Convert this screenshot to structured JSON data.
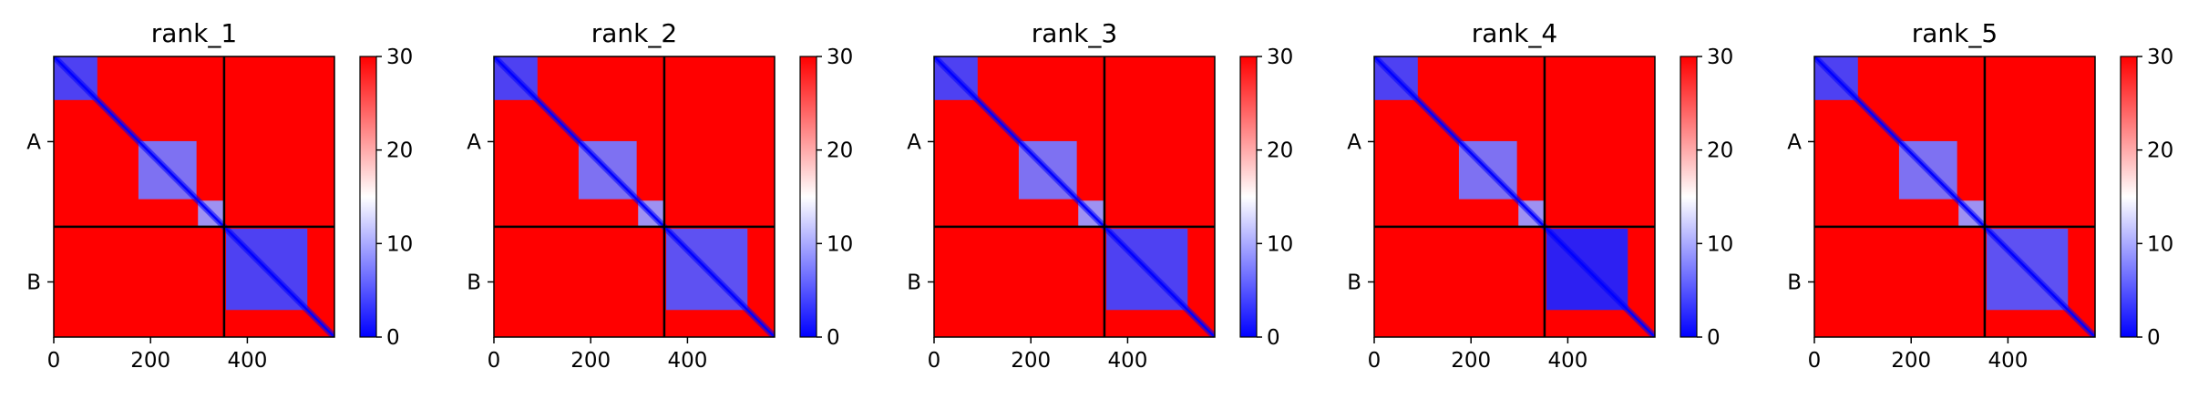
{
  "colors": {
    "low": "#0000ff",
    "mid": "#ffffff",
    "high": "#ff0000",
    "frame": "#000000"
  },
  "chart_data": [
    {
      "type": "heatmap",
      "title": "rank_1",
      "x_ticks": [
        0,
        200,
        400
      ],
      "x_range": [
        0,
        580
      ],
      "chain_boundary": 352,
      "chain_labels": [
        "A",
        "B"
      ],
      "chain_label_positions": [
        176,
        466
      ],
      "colorbar": {
        "range": [
          0,
          30
        ],
        "ticks": [
          0,
          10,
          20,
          30
        ],
        "colormap": "bwr"
      },
      "blocks": [
        {
          "from": 0,
          "to": 90,
          "value": 4
        },
        {
          "from": 175,
          "to": 295,
          "value": 7
        },
        {
          "from": 298,
          "to": 352,
          "value": 9
        },
        {
          "from": 356,
          "to": 524,
          "value": 4
        }
      ]
    },
    {
      "type": "heatmap",
      "title": "rank_2",
      "x_ticks": [
        0,
        200,
        400
      ],
      "x_range": [
        0,
        580
      ],
      "chain_boundary": 352,
      "chain_labels": [
        "A",
        "B"
      ],
      "chain_label_positions": [
        176,
        466
      ],
      "colorbar": {
        "range": [
          0,
          30
        ],
        "ticks": [
          0,
          10,
          20,
          30
        ],
        "colormap": "bwr"
      },
      "blocks": [
        {
          "from": 0,
          "to": 90,
          "value": 4
        },
        {
          "from": 175,
          "to": 295,
          "value": 7
        },
        {
          "from": 298,
          "to": 352,
          "value": 9
        },
        {
          "from": 356,
          "to": 524,
          "value": 5
        }
      ]
    },
    {
      "type": "heatmap",
      "title": "rank_3",
      "x_ticks": [
        0,
        200,
        400
      ],
      "x_range": [
        0,
        580
      ],
      "chain_boundary": 352,
      "chain_labels": [
        "A",
        "B"
      ],
      "chain_label_positions": [
        176,
        466
      ],
      "colorbar": {
        "range": [
          0,
          30
        ],
        "ticks": [
          0,
          10,
          20,
          30
        ],
        "colormap": "bwr"
      },
      "blocks": [
        {
          "from": 0,
          "to": 90,
          "value": 4
        },
        {
          "from": 175,
          "to": 295,
          "value": 7
        },
        {
          "from": 298,
          "to": 352,
          "value": 9
        },
        {
          "from": 356,
          "to": 524,
          "value": 4
        }
      ]
    },
    {
      "type": "heatmap",
      "title": "rank_4",
      "x_ticks": [
        0,
        200,
        400
      ],
      "x_range": [
        0,
        580
      ],
      "chain_boundary": 352,
      "chain_labels": [
        "A",
        "B"
      ],
      "chain_label_positions": [
        176,
        466
      ],
      "colorbar": {
        "range": [
          0,
          30
        ],
        "ticks": [
          0,
          10,
          20,
          30
        ],
        "colormap": "bwr"
      },
      "blocks": [
        {
          "from": 0,
          "to": 90,
          "value": 4
        },
        {
          "from": 175,
          "to": 295,
          "value": 7
        },
        {
          "from": 298,
          "to": 352,
          "value": 9
        },
        {
          "from": 356,
          "to": 524,
          "value": 2
        }
      ]
    },
    {
      "type": "heatmap",
      "title": "rank_5",
      "x_ticks": [
        0,
        200,
        400
      ],
      "x_range": [
        0,
        580
      ],
      "chain_boundary": 352,
      "chain_labels": [
        "A",
        "B"
      ],
      "chain_label_positions": [
        176,
        466
      ],
      "colorbar": {
        "range": [
          0,
          30
        ],
        "ticks": [
          0,
          10,
          20,
          30
        ],
        "colormap": "bwr"
      },
      "blocks": [
        {
          "from": 0,
          "to": 90,
          "value": 4
        },
        {
          "from": 175,
          "to": 295,
          "value": 7
        },
        {
          "from": 298,
          "to": 352,
          "value": 9
        },
        {
          "from": 356,
          "to": 524,
          "value": 5
        }
      ]
    }
  ]
}
